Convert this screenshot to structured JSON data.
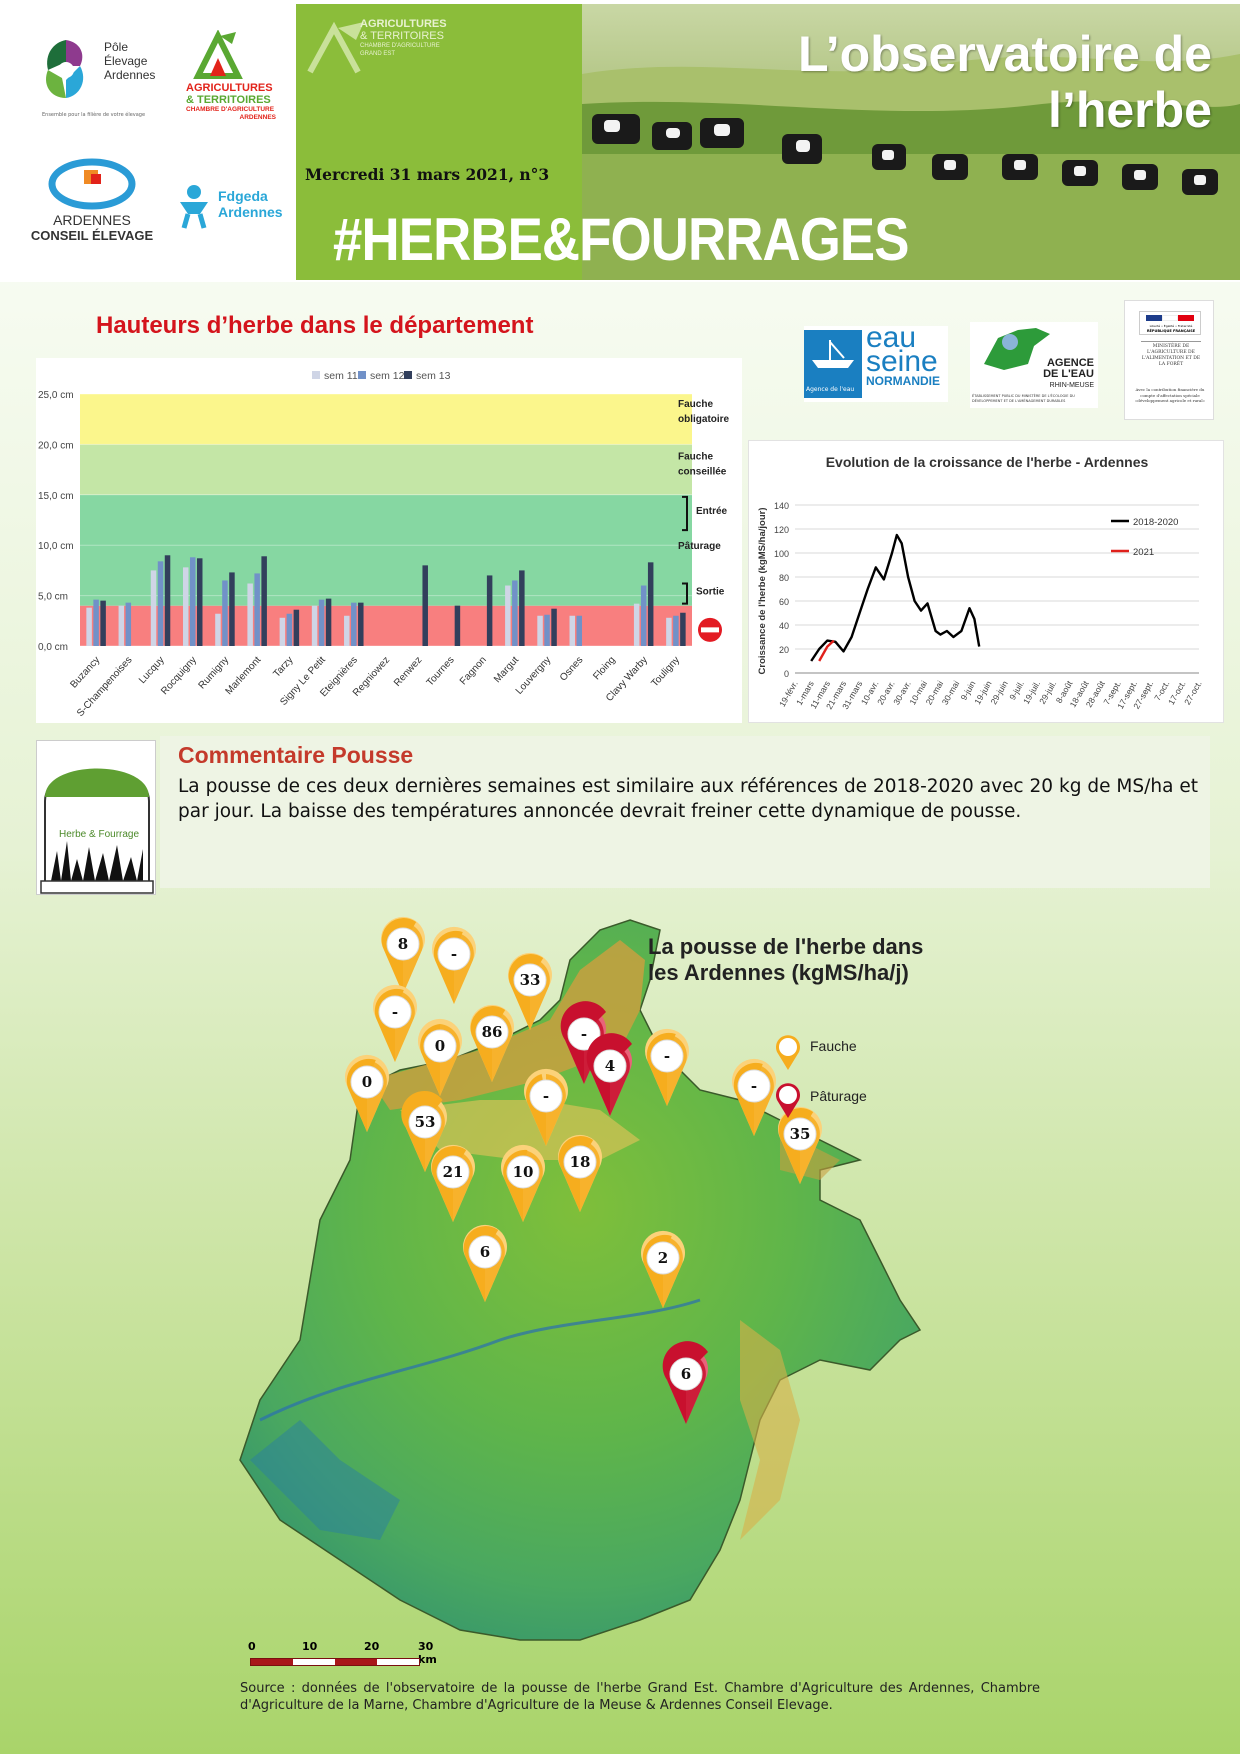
{
  "header": {
    "title_line1": "L’observatoire de",
    "title_line2": "l’herbe",
    "date": "Mercredi 31 mars 2021,  n°3",
    "hashtag": "#HERBE&FOURRAGES",
    "green_logo_l1": "AGRICULTURES",
    "green_logo_l2": "& TERRITOIRES",
    "green_logo_l3": "CHAMBRE D'AGRICULTURE",
    "green_logo_l4": "GRAND EST",
    "logos": {
      "pole_l1": "Pôle",
      "pole_l2": "Élevage",
      "pole_l3": "Ardennes",
      "pole_tag": "Ensemble pour la filière de votre élevage",
      "agri_l1": "AGRICULTURES",
      "agri_l2": "& TERRITOIRES",
      "agri_l3": "CHAMBRE D'AGRICULTURE",
      "agri_l4": "ARDENNES",
      "ace_l1": "ARDENNES",
      "ace_l2": "CONSEIL ÉLEVAGE",
      "fdgeda_l1": "Fdgeda",
      "fdgeda_l2": "Ardennes"
    }
  },
  "partners": {
    "eau_seine_l1": "eau",
    "eau_seine_l2": "seine",
    "eau_seine_l3": "NORMANDIE",
    "eau_seine_tag": "Agence de l'eau",
    "rhin_l1": "AGENCE",
    "rhin_l2": "DE L'EAU",
    "rhin_l3": "RHIN-MEUSE",
    "rhin_tag": "ÉTABLISSEMENT PUBLIC DU MINISTÈRE DE L'ÉCOLOGIE DU DÉVELOPPEMENT ET DE L'AMÉNAGEMENT DURABLES",
    "rf_l1": "Liberté • Égalité • Fraternité",
    "rf_l2": "RÉPUBLIQUE FRANÇAISE",
    "rf_l3": "MINISTÈRE DE L'AGRICULTURE DE L'ALIMENTATION ET DE LA FORÊT",
    "rf_l4": "Avec la contribution financière du compte d'affectation spéciale «développement agricole et rural»"
  },
  "heights_title": "Hauteurs d’herbe dans le département",
  "chart_data": [
    {
      "type": "bar",
      "title": "",
      "ylabel": "",
      "ylim": [
        0,
        25
      ],
      "y_ticks": [
        "0,0 cm",
        "5,0 cm",
        "10,0 cm",
        "15,0 cm",
        "20,0 cm",
        "25,0 cm"
      ],
      "legend_position": "top",
      "zones": [
        {
          "from": 0,
          "to": 4,
          "color": "#f87f7f"
        },
        {
          "from": 4,
          "to": 15,
          "color": "#86d7a2"
        },
        {
          "from": 15,
          "to": 20,
          "color": "#c4e6a6"
        },
        {
          "from": 20,
          "to": 25,
          "color": "#fbf68c"
        }
      ],
      "zone_labels": {
        "fauche_obl_1": "Fauche",
        "fauche_obl_2": "obligatoire",
        "fauche_cons_1": "Fauche",
        "fauche_cons_2": "conseillée",
        "entree": "Entrée",
        "paturage": "Pâturage",
        "sortie": "Sortie"
      },
      "categories": [
        "Buzancy",
        "S-Champenoises",
        "Lucquy",
        "Rocquigny",
        "Rumigny",
        "Marlemont",
        "Tarzy",
        "Signy Le Petit",
        "Eteignières",
        "Regniowez",
        "Renwez",
        "Tournes",
        "Fagnon",
        "Margut",
        "Louvergny",
        "Osnes",
        "Floing",
        "Clavy Warby",
        "Touligny"
      ],
      "series": [
        {
          "name": "sem 11",
          "color": "#cfd5e6",
          "values": [
            3.8,
            4.0,
            7.5,
            7.8,
            3.2,
            6.2,
            2.8,
            4.0,
            3.0,
            null,
            null,
            null,
            null,
            6.0,
            3.0,
            3.0,
            null,
            4.2,
            2.8
          ]
        },
        {
          "name": "sem 12",
          "color": "#7191c8",
          "values": [
            4.6,
            4.3,
            8.4,
            8.8,
            6.5,
            7.2,
            3.2,
            4.6,
            4.3,
            null,
            null,
            null,
            null,
            6.5,
            3.1,
            3.0,
            null,
            6.0,
            3.0
          ]
        },
        {
          "name": "sem 13",
          "color": "#323f5c",
          "values": [
            4.5,
            null,
            9.0,
            8.7,
            7.3,
            8.9,
            3.6,
            4.7,
            4.3,
            null,
            8.0,
            4.0,
            7.0,
            7.5,
            3.7,
            null,
            null,
            8.3,
            3.3
          ]
        }
      ]
    },
    {
      "type": "line",
      "title": "Evolution de la croissance de l'herbe - Ardennes",
      "ylabel": "Croissance de l'herbe (kgMS/ha/jour)",
      "xlabel": "",
      "ylim": [
        0,
        140
      ],
      "y_ticks": [
        0,
        20,
        40,
        60,
        80,
        100,
        120,
        140
      ],
      "categories": [
        "19-févr.",
        "1-mars",
        "11-mars",
        "21-mars",
        "31-mars",
        "10-avr.",
        "20-avr.",
        "30-avr.",
        "10-mai",
        "20-mai",
        "30-mai",
        "9-juin",
        "19-juin",
        "29-juin",
        "9-juil.",
        "19-juil.",
        "29-juil.",
        "8-août",
        "18-août",
        "28-août",
        "7-sept.",
        "17-sept.",
        "27-sept.",
        "7-oct.",
        "17-oct.",
        "27-oct."
      ],
      "legend_position": "top-right",
      "series": [
        {
          "name": "2018-2020",
          "color": "#000000",
          "points": [
            [
              1.0,
              10
            ],
            [
              1.5,
              20
            ],
            [
              2.0,
              27
            ],
            [
              2.5,
              26
            ],
            [
              3.0,
              18
            ],
            [
              3.5,
              30
            ],
            [
              4.0,
              50
            ],
            [
              4.5,
              70
            ],
            [
              5.0,
              88
            ],
            [
              5.5,
              78
            ],
            [
              6.0,
              100
            ],
            [
              6.3,
              115
            ],
            [
              6.6,
              108
            ],
            [
              7.0,
              80
            ],
            [
              7.4,
              60
            ],
            [
              7.8,
              52
            ],
            [
              8.2,
              58
            ],
            [
              8.7,
              35
            ],
            [
              9.0,
              32
            ],
            [
              9.4,
              35
            ],
            [
              9.8,
              30
            ],
            [
              10.3,
              35
            ],
            [
              10.8,
              54
            ],
            [
              11.1,
              45
            ],
            [
              11.4,
              22
            ]
          ]
        },
        {
          "name": "2021",
          "color": "#e0201b",
          "points": [
            [
              1.5,
              10
            ],
            [
              2.0,
              22
            ],
            [
              2.4,
              27
            ]
          ]
        }
      ]
    }
  ],
  "comment": {
    "title": "Commentaire Pousse",
    "text": "La pousse de ces deux dernières semaines est similaire aux références de 2018-2020 avec 20 kg de MS/ha et par jour. La baisse des températures annoncée devrait freiner cette dynamique de pousse.",
    "icon_label": "Herbe & Fourrage"
  },
  "map": {
    "title_l1": "La pousse de l'herbe dans",
    "title_l2": "les Ardennes (kgMS/ha/j)",
    "legend": {
      "fauche": "Fauche",
      "paturage": "Pâturage"
    },
    "scale_labels": [
      "0",
      "10",
      "20",
      "30 km"
    ],
    "markers": [
      {
        "label": "8",
        "kind": "fauche",
        "fill": 0.8
      },
      {
        "label": "-",
        "kind": "fauche",
        "fill": 0.7
      },
      {
        "label": "33",
        "kind": "fauche",
        "fill": 0.8
      },
      {
        "label": "-",
        "kind": "fauche",
        "fill": 0.7
      },
      {
        "label": "0",
        "kind": "fauche",
        "fill": 0.5
      },
      {
        "label": "86",
        "kind": "fauche",
        "fill": 0.8
      },
      {
        "label": "-",
        "kind": "paturage",
        "fill": 1.0
      },
      {
        "label": "4",
        "kind": "paturage",
        "fill": 1.0
      },
      {
        "label": "-",
        "kind": "fauche",
        "fill": 0.7
      },
      {
        "label": "0",
        "kind": "fauche",
        "fill": 0.7
      },
      {
        "label": "53",
        "kind": "fauche",
        "fill": 0.9
      },
      {
        "label": "-",
        "kind": "fauche",
        "fill": 0.4
      },
      {
        "label": "-",
        "kind": "fauche",
        "fill": 0.7
      },
      {
        "label": "35",
        "kind": "fauche",
        "fill": 0.8
      },
      {
        "label": "21",
        "kind": "fauche",
        "fill": 0.8
      },
      {
        "label": "10",
        "kind": "fauche",
        "fill": 0.6
      },
      {
        "label": "18",
        "kind": "fauche",
        "fill": 0.8
      },
      {
        "label": "6",
        "kind": "fauche",
        "fill": 0.8
      },
      {
        "label": "2",
        "kind": "fauche",
        "fill": 0.7
      },
      {
        "label": "6",
        "kind": "paturage",
        "fill": 1.0
      }
    ]
  },
  "source": "Source : données de l'observatoire de la pousse de l'herbe Grand Est. Chambre d'Agriculture des Ardennes, Chambre d'Agriculture de la Marne, Chambre d'Agriculture de la Meuse & Ardennes Conseil Elevage."
}
